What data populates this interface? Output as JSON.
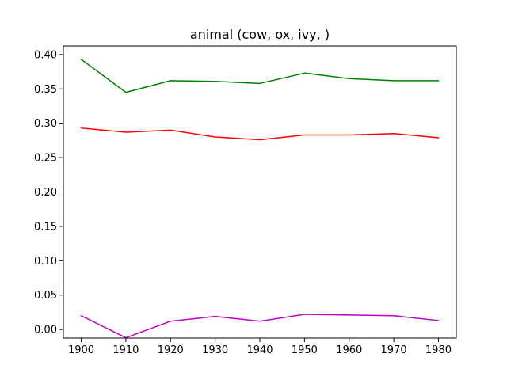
{
  "chart_data": {
    "type": "line",
    "title": "animal (cow, ox, ivy, )",
    "xlabel": "",
    "ylabel": "",
    "x": [
      1900,
      1910,
      1920,
      1930,
      1940,
      1950,
      1960,
      1970,
      1980
    ],
    "xlim": [
      1896,
      1984
    ],
    "ylim": [
      -0.0125,
      0.4125
    ],
    "x_ticks": [
      1900,
      1910,
      1920,
      1930,
      1940,
      1950,
      1960,
      1970,
      1980
    ],
    "y_ticks": [
      0.0,
      0.05,
      0.1,
      0.15,
      0.2,
      0.25,
      0.3,
      0.35,
      0.4
    ],
    "x_tick_labels": [
      "1900",
      "1910",
      "1920",
      "1930",
      "1940",
      "1950",
      "1960",
      "1970",
      "1980"
    ],
    "y_tick_labels": [
      "0.00",
      "0.05",
      "0.10",
      "0.15",
      "0.20",
      "0.25",
      "0.30",
      "0.35",
      "0.40"
    ],
    "grid": false,
    "legend": "none",
    "series": [
      {
        "color": "#008000",
        "values": [
          0.393,
          0.345,
          0.362,
          0.361,
          0.358,
          0.373,
          0.365,
          0.362,
          0.362
        ]
      },
      {
        "color": "#ff0000",
        "values": [
          0.293,
          0.287,
          0.29,
          0.28,
          0.276,
          0.283,
          0.283,
          0.285,
          0.279
        ]
      },
      {
        "color": "#bf00bf",
        "values": [
          0.02,
          -0.012,
          0.012,
          0.019,
          0.012,
          0.022,
          0.021,
          0.02,
          0.013
        ]
      }
    ]
  }
}
